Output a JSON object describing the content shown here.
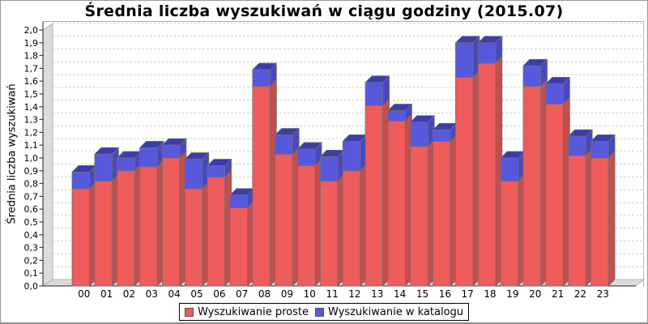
{
  "chart_data": {
    "type": "bar",
    "stacked": true,
    "effect_3d": true,
    "title": "Średnia liczba wyszukiwań w ciągu godziny (2015.07)",
    "ylabel": "Średnia liczba wyszukiwań",
    "ylim": [
      0.0,
      2.0
    ],
    "ytick_step": 0.1,
    "ytick_labels": [
      "0,0",
      "0,1",
      "0,2",
      "0,3",
      "0,4",
      "0,5",
      "0,6",
      "0,7",
      "0,8",
      "0,9",
      "1,0",
      "1,1",
      "1,2",
      "1,3",
      "1,4",
      "1,5",
      "1,6",
      "1,7",
      "1,8",
      "1,9",
      "2,0"
    ],
    "grid": true,
    "legend_position": "bottom",
    "categories": [
      "00",
      "01",
      "02",
      "03",
      "04",
      "05",
      "06",
      "07",
      "08",
      "09",
      "10",
      "11",
      "12",
      "13",
      "14",
      "15",
      "16",
      "17",
      "18",
      "19",
      "20",
      "21",
      "22",
      "23"
    ],
    "series": [
      {
        "name": "Wyszukiwanie proste",
        "color": "#ee5c5c",
        "side_color": "#c64d4d",
        "top_color": "#b04646",
        "values": [
          0.76,
          0.82,
          0.9,
          0.93,
          1.0,
          0.76,
          0.85,
          0.61,
          1.56,
          1.03,
          0.94,
          0.82,
          0.9,
          1.41,
          1.29,
          1.09,
          1.13,
          1.63,
          1.74,
          0.82,
          1.56,
          1.42,
          1.02,
          1.0
        ]
      },
      {
        "name": "Wyszukiwanie w katalogu",
        "color": "#5858dc",
        "side_color": "#4848c4",
        "top_color": "#3c3cb0",
        "values": [
          0.13,
          0.21,
          0.1,
          0.15,
          0.1,
          0.23,
          0.09,
          0.1,
          0.13,
          0.15,
          0.13,
          0.19,
          0.23,
          0.18,
          0.08,
          0.19,
          0.09,
          0.27,
          0.16,
          0.18,
          0.16,
          0.16,
          0.15,
          0.13
        ]
      }
    ],
    "stack_totals": [
      0.89,
      1.03,
      1.0,
      1.08,
      1.1,
      0.99,
      0.94,
      0.71,
      1.69,
      1.18,
      1.07,
      1.01,
      1.13,
      1.59,
      1.37,
      1.28,
      1.22,
      1.9,
      1.9,
      1.0,
      1.72,
      1.58,
      1.17,
      1.13
    ]
  },
  "legend": {
    "items": [
      {
        "label": "Wyszukiwanie proste",
        "color": "#f25b5b"
      },
      {
        "label": "Wyszukiwanie w katalogu",
        "color": "#5757e0"
      }
    ]
  },
  "colors": {
    "background": "#ffffff",
    "wall": "#dcdcdc",
    "gridline": "#c8c8c8",
    "axis": "#222222",
    "bar_outline": "#6f6f6f",
    "plot_border": "#aaaaaa"
  }
}
